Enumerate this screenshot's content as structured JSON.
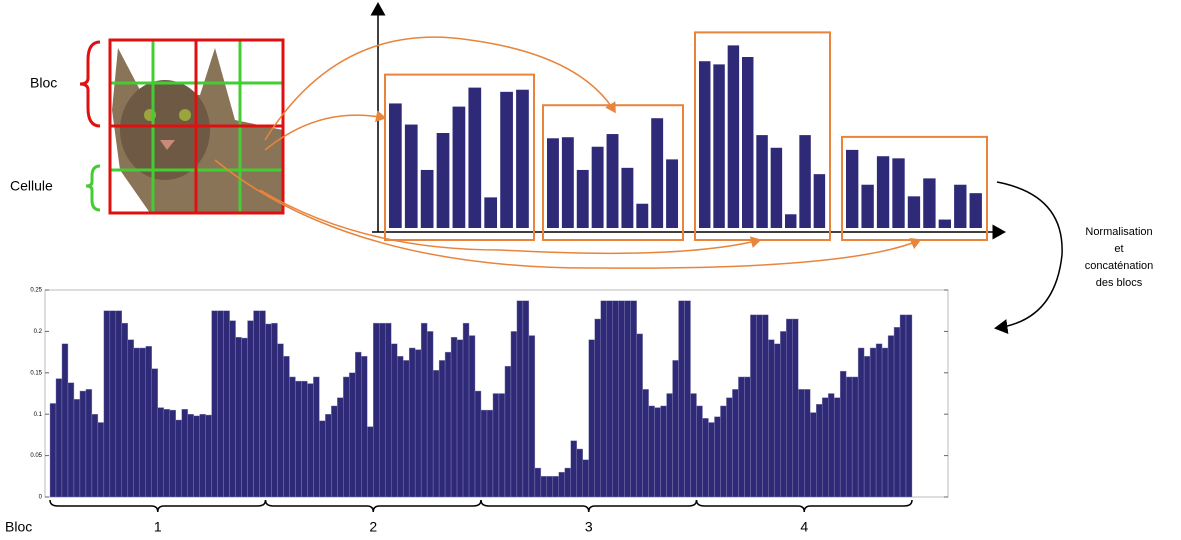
{
  "diagram": {
    "bloc_label": "Bloc",
    "cell_label": "Cellule",
    "step_label": [
      "Normalisation",
      "et",
      "concaténation",
      "des blocs"
    ]
  },
  "chart_data": [
    {
      "type": "block-histogram",
      "ylim": [
        0,
        180
      ],
      "groups": [
        {
          "values": [
            118,
            98,
            55,
            90,
            115,
            133,
            29,
            129,
            131
          ]
        },
        {
          "values": [
            85,
            86,
            55,
            77,
            89,
            57,
            23,
            104,
            65
          ]
        },
        {
          "values": [
            158,
            155,
            173,
            162,
            88,
            76,
            13,
            88,
            51
          ]
        },
        {
          "values": [
            74,
            41,
            68,
            66,
            30,
            47,
            8,
            41,
            33
          ]
        }
      ],
      "color": "#2e2a78",
      "frame_color": "#e8843c"
    },
    {
      "type": "bar",
      "color": "#2e2a78",
      "ylim": [
        0,
        0.25
      ],
      "yticks": [
        0,
        0.05,
        0.1,
        0.15,
        0.2,
        0.25
      ],
      "group_title": "Bloc",
      "groups": [
        "1",
        "2",
        "3",
        "4"
      ],
      "values": [
        0.113,
        0.143,
        0.185,
        0.138,
        0.118,
        0.128,
        0.13,
        0.1,
        0.09,
        0.225,
        0.225,
        0.225,
        0.21,
        0.19,
        0.18,
        0.18,
        0.182,
        0.155,
        0.108,
        0.106,
        0.105,
        0.093,
        0.106,
        0.1,
        0.098,
        0.1,
        0.099,
        0.225,
        0.225,
        0.225,
        0.213,
        0.193,
        0.192,
        0.213,
        0.225,
        0.225,
        0.209,
        0.21,
        0.185,
        0.17,
        0.145,
        0.14,
        0.14,
        0.137,
        0.145,
        0.092,
        0.1,
        0.11,
        0.12,
        0.145,
        0.15,
        0.175,
        0.17,
        0.085,
        0.21,
        0.21,
        0.21,
        0.185,
        0.17,
        0.165,
        0.18,
        0.178,
        0.21,
        0.2,
        0.153,
        0.165,
        0.175,
        0.193,
        0.19,
        0.21,
        0.195,
        0.128,
        0.105,
        0.105,
        0.125,
        0.125,
        0.158,
        0.2,
        0.237,
        0.237,
        0.195,
        0.035,
        0.025,
        0.025,
        0.025,
        0.03,
        0.035,
        0.068,
        0.058,
        0.045,
        0.19,
        0.215,
        0.237,
        0.237,
        0.237,
        0.237,
        0.237,
        0.237,
        0.197,
        0.13,
        0.11,
        0.108,
        0.11,
        0.125,
        0.165,
        0.237,
        0.237,
        0.125,
        0.11,
        0.095,
        0.09,
        0.097,
        0.11,
        0.12,
        0.13,
        0.145,
        0.145,
        0.22,
        0.22,
        0.22,
        0.19,
        0.185,
        0.2,
        0.215,
        0.215,
        0.13,
        0.13,
        0.102,
        0.112,
        0.12,
        0.125,
        0.12,
        0.152,
        0.145,
        0.145,
        0.18,
        0.17,
        0.18,
        0.185,
        0.18,
        0.195,
        0.205,
        0.22,
        0.22
      ]
    }
  ]
}
